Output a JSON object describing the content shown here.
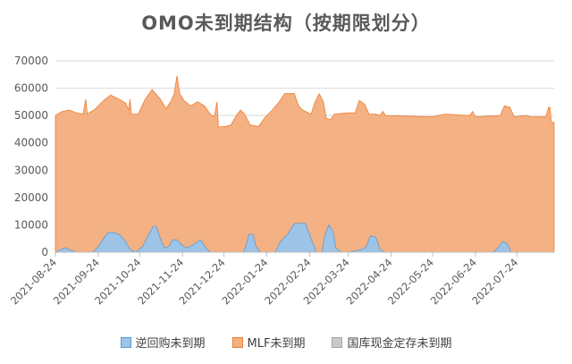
{
  "chart_data": {
    "type": "area",
    "title": "OMO未到期结构（按期限划分）",
    "xlabel": "",
    "ylabel": "",
    "ylim": [
      0,
      70000
    ],
    "yticks": [
      0,
      10000,
      20000,
      30000,
      40000,
      50000,
      60000,
      70000
    ],
    "grid": "horizontal",
    "legend_position": "bottom",
    "x_ticks": [
      "2021-08-24",
      "2021-09-24",
      "2021-10-24",
      "2021-11-24",
      "2021-12-24",
      "2022-01-24",
      "2022-02-24",
      "2022-03-24",
      "2022-04-24",
      "2022-05-24",
      "2022-06-24",
      "2022-07-24"
    ],
    "x_range": [
      "2021-08-24",
      "2022-08-20"
    ],
    "series": [
      {
        "name": "MLF未到期",
        "color": "#F4B183",
        "stroke": "#ED7D31",
        "points": [
          [
            "2021-08-24",
            50000
          ],
          [
            "2021-08-29",
            51500
          ],
          [
            "2021-09-03",
            52000
          ],
          [
            "2021-09-08",
            51000
          ],
          [
            "2021-09-13",
            50500
          ],
          [
            "2021-09-15",
            56000
          ],
          [
            "2021-09-16",
            50500
          ],
          [
            "2021-09-19",
            51500
          ],
          [
            "2021-09-21",
            52000
          ],
          [
            "2021-09-24",
            53500
          ],
          [
            "2021-09-28",
            55500
          ],
          [
            "2021-10-03",
            57500
          ],
          [
            "2021-10-09",
            56000
          ],
          [
            "2021-10-14",
            54500
          ],
          [
            "2021-10-16",
            52000
          ],
          [
            "2021-10-17",
            56000
          ],
          [
            "2021-10-18",
            50500
          ],
          [
            "2021-10-23",
            50500
          ],
          [
            "2021-10-28",
            56000
          ],
          [
            "2021-11-02",
            59500
          ],
          [
            "2021-11-08",
            56000
          ],
          [
            "2021-11-12",
            52500
          ],
          [
            "2021-11-16",
            55500
          ],
          [
            "2021-11-18",
            58000
          ],
          [
            "2021-11-20",
            64500
          ],
          [
            "2021-11-22",
            58000
          ],
          [
            "2021-11-25",
            55500
          ],
          [
            "2021-11-30",
            53500
          ],
          [
            "2021-12-05",
            55000
          ],
          [
            "2021-12-10",
            53500
          ],
          [
            "2021-12-14",
            50500
          ],
          [
            "2021-12-17",
            49500
          ],
          [
            "2021-12-19",
            55000
          ],
          [
            "2021-12-20",
            45800
          ],
          [
            "2021-12-25",
            46000
          ],
          [
            "2021-12-29",
            46500
          ],
          [
            "2022-01-02",
            50000
          ],
          [
            "2022-01-05",
            52000
          ],
          [
            "2022-01-08",
            50500
          ],
          [
            "2022-01-12",
            46500
          ],
          [
            "2022-01-18",
            46000
          ],
          [
            "2022-01-23",
            49500
          ],
          [
            "2022-01-28",
            52000
          ],
          [
            "2022-02-02",
            55000
          ],
          [
            "2022-02-06",
            58000
          ],
          [
            "2022-02-13",
            58000
          ],
          [
            "2022-02-16",
            53500
          ],
          [
            "2022-02-19",
            52000
          ],
          [
            "2022-02-21",
            51500
          ],
          [
            "2022-02-23",
            51000
          ],
          [
            "2022-02-25",
            50500
          ],
          [
            "2022-02-28",
            55000
          ],
          [
            "2022-03-03",
            58000
          ],
          [
            "2022-03-06",
            55000
          ],
          [
            "2022-03-08",
            49000
          ],
          [
            "2022-03-11",
            48500
          ],
          [
            "2022-03-14",
            50500
          ],
          [
            "2022-03-24",
            51000
          ],
          [
            "2022-03-29",
            51000
          ],
          [
            "2022-04-01",
            55500
          ],
          [
            "2022-04-05",
            54000
          ],
          [
            "2022-04-08",
            50500
          ],
          [
            "2022-04-13",
            50500
          ],
          [
            "2022-04-16",
            50000
          ],
          [
            "2022-04-18",
            51500
          ],
          [
            "2022-04-20",
            50000
          ],
          [
            "2022-05-24",
            49500
          ],
          [
            "2022-06-02",
            50500
          ],
          [
            "2022-06-20",
            50000
          ],
          [
            "2022-06-22",
            51500
          ],
          [
            "2022-06-24",
            49500
          ],
          [
            "2022-07-12",
            50000
          ],
          [
            "2022-07-15",
            53500
          ],
          [
            "2022-07-19",
            53000
          ],
          [
            "2022-07-22",
            49500
          ],
          [
            "2022-07-31",
            50000
          ],
          [
            "2022-08-03",
            49500
          ],
          [
            "2022-08-14",
            49500
          ],
          [
            "2022-08-16",
            53000
          ],
          [
            "2022-08-17",
            53000
          ],
          [
            "2022-08-18",
            47500
          ],
          [
            "2022-08-20",
            47500
          ]
        ]
      },
      {
        "name": "逆回购未到期",
        "color": "#9DC3E6",
        "stroke": "#5B9BD5",
        "points": [
          [
            "2021-08-24",
            0
          ],
          [
            "2021-08-27",
            800
          ],
          [
            "2021-08-31",
            1600
          ],
          [
            "2021-09-04",
            800
          ],
          [
            "2021-09-08",
            0
          ],
          [
            "2021-09-20",
            0
          ],
          [
            "2021-09-24",
            2000
          ],
          [
            "2021-09-27",
            4500
          ],
          [
            "2021-10-01",
            7200
          ],
          [
            "2021-10-05",
            7200
          ],
          [
            "2021-10-09",
            6500
          ],
          [
            "2021-10-13",
            4500
          ],
          [
            "2021-10-17",
            1000
          ],
          [
            "2021-10-21",
            0
          ],
          [
            "2021-10-26",
            2000
          ],
          [
            "2021-10-30",
            6000
          ],
          [
            "2021-11-03",
            9500
          ],
          [
            "2021-11-05",
            9500
          ],
          [
            "2021-11-08",
            5000
          ],
          [
            "2021-11-11",
            1500
          ],
          [
            "2021-11-14",
            2000
          ],
          [
            "2021-11-17",
            4500
          ],
          [
            "2021-11-20",
            4500
          ],
          [
            "2021-11-24",
            2500
          ],
          [
            "2021-11-27",
            1500
          ],
          [
            "2021-12-01",
            2500
          ],
          [
            "2021-12-04",
            3500
          ],
          [
            "2021-12-07",
            4500
          ],
          [
            "2021-12-11",
            1500
          ],
          [
            "2021-12-14",
            0
          ],
          [
            "2022-01-07",
            0
          ],
          [
            "2022-01-09",
            2500
          ],
          [
            "2022-01-11",
            6500
          ],
          [
            "2022-01-14",
            6500
          ],
          [
            "2022-01-16",
            2500
          ],
          [
            "2022-01-19",
            0
          ],
          [
            "2022-01-30",
            0
          ],
          [
            "2022-02-03",
            4000
          ],
          [
            "2022-02-08",
            6500
          ],
          [
            "2022-02-13",
            10500
          ],
          [
            "2022-02-21",
            10500
          ],
          [
            "2022-02-25",
            5000
          ],
          [
            "2022-03-01",
            0
          ],
          [
            "2022-03-05",
            0
          ],
          [
            "2022-03-07",
            6000
          ],
          [
            "2022-03-10",
            10000
          ],
          [
            "2022-03-13",
            7500
          ],
          [
            "2022-03-15",
            1500
          ],
          [
            "2022-03-19",
            0
          ],
          [
            "2022-03-24",
            0
          ],
          [
            "2022-03-29",
            500
          ],
          [
            "2022-04-03",
            1000
          ],
          [
            "2022-04-06",
            2000
          ],
          [
            "2022-04-09",
            6000
          ],
          [
            "2022-04-13",
            5500
          ],
          [
            "2022-04-16",
            1000
          ],
          [
            "2022-04-19",
            0
          ],
          [
            "2022-07-07",
            0
          ],
          [
            "2022-07-11",
            2000
          ],
          [
            "2022-07-14",
            4000
          ],
          [
            "2022-07-17",
            3000
          ],
          [
            "2022-07-20",
            0
          ],
          [
            "2022-08-20",
            0
          ]
        ]
      },
      {
        "name": "国库现金定存未到期",
        "color": "#C9C9C9",
        "stroke": "#A5A5A5",
        "points": [
          [
            "2021-08-24",
            0
          ],
          [
            "2022-08-20",
            0
          ]
        ]
      }
    ]
  }
}
